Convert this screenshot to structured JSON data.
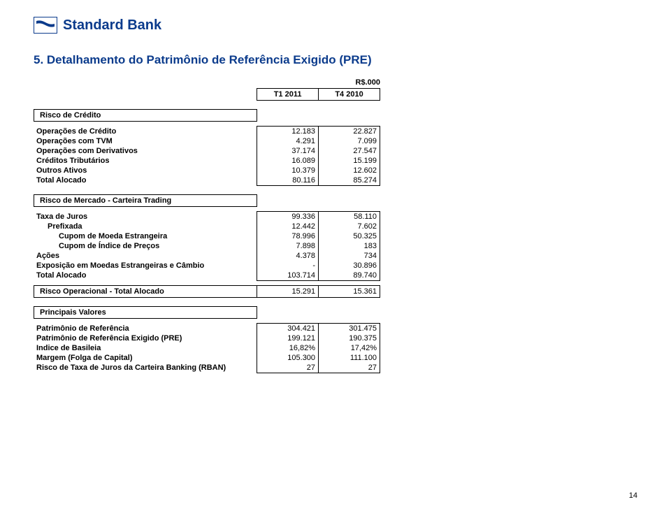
{
  "brand": {
    "name": "Standard Bank",
    "color": "#0b3b8c"
  },
  "title": "5.    Detalhamento do Patrimônio de Referência Exigido (PRE)",
  "unit": "R$.000",
  "periods": {
    "t1": "T1 2011",
    "t2": "T4 2010"
  },
  "sec_credito": {
    "header": "Risco de Crédito",
    "rows": [
      {
        "label": "Operações de Crédito",
        "v1": "12.183",
        "v2": "22.827"
      },
      {
        "label": "Operações com TVM",
        "v1": "4.291",
        "v2": "7.099"
      },
      {
        "label": "Operações com Derivativos",
        "v1": "37.174",
        "v2": "27.547"
      },
      {
        "label": "Créditos Tributários",
        "v1": "16.089",
        "v2": "15.199"
      },
      {
        "label": "Outros Ativos",
        "v1": "10.379",
        "v2": "12.602"
      },
      {
        "label": "Total Alocado",
        "v1": "80.116",
        "v2": "85.274"
      }
    ]
  },
  "sec_mercado": {
    "header": "Risco de Mercado - Carteira Trading",
    "rows": [
      {
        "label": "Taxa de Juros",
        "indent": 0,
        "v1": "99.336",
        "v2": "58.110"
      },
      {
        "label": "Prefixada",
        "indent": 1,
        "v1": "12.442",
        "v2": "7.602"
      },
      {
        "label": "Cupom de Moeda Estrangeira",
        "indent": 2,
        "v1": "78.996",
        "v2": "50.325"
      },
      {
        "label": "Cupom de Índice de Preços",
        "indent": 2,
        "v1": "7.898",
        "v2": "183"
      },
      {
        "label": "Ações",
        "indent": 0,
        "v1": "4.378",
        "v2": "734"
      },
      {
        "label": "Exposição em Moedas Estrangeiras e Câmbio",
        "indent": 0,
        "v1": "-",
        "v2": "30.896"
      },
      {
        "label": "Total Alocado",
        "indent": 0,
        "v1": "103.714",
        "v2": "89.740"
      }
    ]
  },
  "operacional": {
    "label": "Risco Operacional - Total Alocado",
    "v1": "15.291",
    "v2": "15.361"
  },
  "sec_principais": {
    "header": "Principais Valores",
    "rows": [
      {
        "label": "Patrimônio de Referência",
        "v1": "304.421",
        "v2": "301.475"
      },
      {
        "label": "Patrimônio de Referência Exigido (PRE)",
        "v1": "199.121",
        "v2": "190.375"
      },
      {
        "label": "Indice de Basileia",
        "v1": "16,82%",
        "v2": "17,42%"
      },
      {
        "label": "Margem (Folga de Capital)",
        "v1": "105.300",
        "v2": "111.100"
      },
      {
        "label": "Risco de Taxa de Juros da Carteira Banking (RBAN)",
        "v1": "27",
        "v2": "27"
      }
    ]
  },
  "page": "14"
}
